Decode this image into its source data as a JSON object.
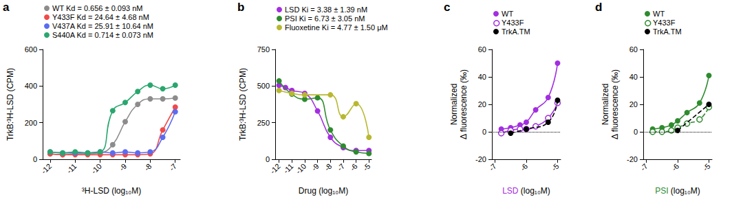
{
  "chart_data": [
    {
      "type": "line",
      "title": "a",
      "xlabel": "³H-LSD (log₁₀M)",
      "ylabel": "TrkB:³H-LSD (CPM)",
      "xlim": [
        -12.3,
        -6.8
      ],
      "xticks": [
        -12,
        -11,
        -10,
        -9,
        -8,
        -7
      ],
      "ylim": [
        0,
        600
      ],
      "yticks": [
        0,
        200,
        400,
        600
      ],
      "grid": false,
      "legend": "upper left",
      "x": [
        -12,
        -11.5,
        -11,
        -10.5,
        -10,
        -9.5,
        -9,
        -8.5,
        -8,
        -7.5,
        -7
      ],
      "series": [
        {
          "name": "WT Kd = 0.656 ± 0.093 nM",
          "color": "#8c8c8c",
          "marker": "circle",
          "line_style": "solid",
          "values": [
            30,
            25,
            30,
            30,
            35,
            80,
            205,
            300,
            330,
            330,
            335
          ]
        },
        {
          "name": "Y433F Kd = 24.64 ± 4.68 nM",
          "color": "#f04a4a",
          "marker": "circle",
          "line_style": "solid",
          "values": [
            30,
            25,
            25,
            25,
            25,
            25,
            25,
            25,
            30,
            160,
            285
          ]
        },
        {
          "name": "V437A Kd = 25.91 ± 10.64 nM",
          "color": "#5a6cf0",
          "marker": "circle",
          "line_style": "solid",
          "values": [
            40,
            35,
            35,
            35,
            40,
            35,
            40,
            35,
            40,
            120,
            260
          ]
        },
        {
          "name": "S440A Kd = 0.714 ± 0.073 nM",
          "color": "#2aa66e",
          "marker": "circle",
          "line_style": "solid",
          "values": [
            40,
            35,
            40,
            35,
            40,
            265,
            310,
            370,
            405,
            385,
            405
          ]
        }
      ]
    },
    {
      "type": "line",
      "title": "b",
      "xlabel": "Drug (log₁₀M)",
      "ylabel": "TrkB:³H-LSD (CPM)",
      "xlim": [
        -12.3,
        -4.8
      ],
      "xticks": [
        -12,
        -11,
        -10,
        -9,
        -8,
        -7,
        -6,
        -5
      ],
      "ylim": [
        0,
        750
      ],
      "yticks": [
        0,
        250,
        500,
        750
      ],
      "grid": false,
      "legend": "upper left",
      "series": [
        {
          "name": "LSD Ki = 3.38 ± 1.39 nM",
          "color": "#a22ee0",
          "marker": "circle",
          "line_style": "solid",
          "x": [
            -12,
            -11.5,
            -11,
            -10,
            -9,
            -8,
            -7,
            -6,
            -5
          ],
          "values": [
            505,
            490,
            470,
            450,
            330,
            150,
            80,
            60,
            60
          ]
        },
        {
          "name": "PSI Ki = 6.73 ± 3.05 nM",
          "color": "#2e8b2e",
          "marker": "circle",
          "line_style": "solid",
          "x": [
            -12,
            -11,
            -10,
            -9,
            -8,
            -7,
            -6,
            -5
          ],
          "values": [
            535,
            445,
            410,
            420,
            200,
            90,
            50,
            40
          ]
        },
        {
          "name": "Fluoxetine Ki = 4.77 ± 1.50 μM",
          "color": "#b8b830",
          "marker": "circle",
          "line_style": "solid",
          "x": [
            -12,
            -11,
            -10,
            -8,
            -7,
            -6,
            -5
          ],
          "values": [
            470,
            450,
            440,
            440,
            290,
            380,
            150
          ]
        }
      ]
    },
    {
      "type": "line",
      "title": "c",
      "xlabel": "LSD (log₁₀M)",
      "ylabel": "Normalized\nΔ fluorescence (‰)",
      "xlim": [
        -7.1,
        -4.9
      ],
      "xticks": [
        -7,
        -6,
        -5
      ],
      "ylim": [
        -20,
        60
      ],
      "yticks": [
        -20,
        0,
        20,
        40,
        60
      ],
      "grid": false,
      "legend": "upper left",
      "hline": 0,
      "series": [
        {
          "name": "WT",
          "color": "#a22ee0",
          "marker": "circle",
          "line_style": "solid",
          "x": [
            -6.8,
            -6.5,
            -6.2,
            -6,
            -5.7,
            -5.3,
            -5
          ],
          "values": [
            2,
            3,
            5,
            7,
            16,
            25,
            50
          ]
        },
        {
          "name": "Y433F",
          "color": "#a22ee0",
          "marker": "open_circle",
          "line_style": "solid",
          "x": [
            -6.8,
            -6.5,
            -6.2,
            -6,
            -5.7,
            -5.3,
            -5
          ],
          "values": [
            -1,
            1,
            2,
            2,
            4,
            10,
            21
          ]
        },
        {
          "name": "TrkA.TM",
          "color": "#000000",
          "marker": "circle",
          "line_style": "dashed",
          "x": [
            -6.5,
            -6,
            -5.3,
            -5
          ],
          "values": [
            -1,
            2,
            7,
            23
          ]
        }
      ]
    },
    {
      "type": "line",
      "title": "d",
      "xlabel": "PSI (log₁₀M)",
      "ylabel": "Normalized\nΔ fluorescence (‰)",
      "xlim": [
        -7.1,
        -4.9
      ],
      "xticks": [
        -7,
        -6,
        -5
      ],
      "ylim": [
        -20,
        60
      ],
      "yticks": [
        -20,
        0,
        20,
        40,
        60
      ],
      "grid": false,
      "legend": "upper left",
      "hline": 0,
      "series": [
        {
          "name": "WT",
          "color": "#2e8b2e",
          "marker": "circle",
          "line_style": "solid",
          "x": [
            -6.8,
            -6.5,
            -6.2,
            -6,
            -5.7,
            -5.3,
            -5
          ],
          "values": [
            2,
            3,
            5,
            8,
            14,
            21,
            41
          ]
        },
        {
          "name": "Y433F",
          "color": "#2e8b2e",
          "marker": "open_circle",
          "line_style": "dashed",
          "x": [
            -6.8,
            -6.5,
            -6.2,
            -6,
            -5.7,
            -5.3,
            -5
          ],
          "values": [
            0,
            0,
            1,
            3,
            6,
            9,
            18
          ]
        },
        {
          "name": "TrkA.TM",
          "color": "#000000",
          "marker": "circle",
          "line_style": "dashed",
          "x": [
            -6,
            -5
          ],
          "values": [
            1,
            20
          ]
        }
      ]
    }
  ]
}
